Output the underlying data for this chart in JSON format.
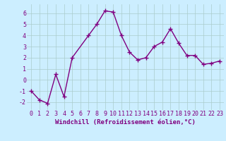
{
  "x": [
    0,
    1,
    2,
    3,
    4,
    5,
    7,
    8,
    9,
    10,
    11,
    12,
    13,
    14,
    15,
    16,
    17,
    18,
    19,
    20,
    21,
    22,
    23
  ],
  "y": [
    -1.0,
    -1.8,
    -2.1,
    0.5,
    -1.5,
    2.0,
    4.0,
    5.0,
    6.2,
    6.1,
    4.0,
    2.5,
    1.8,
    2.0,
    3.0,
    3.4,
    4.6,
    3.3,
    2.2,
    2.2,
    1.4,
    1.5,
    1.7
  ],
  "line_color": "#800080",
  "marker": "+",
  "marker_size": 4,
  "linewidth": 1.0,
  "background_color": "#cceeff",
  "grid_color": "#aacccc",
  "xlabel": "Windchill (Refroidissement éolien,°C)",
  "xlim": [
    -0.5,
    23.5
  ],
  "ylim": [
    -2.7,
    6.8
  ],
  "xticks": [
    0,
    1,
    2,
    3,
    4,
    5,
    6,
    7,
    8,
    9,
    10,
    11,
    12,
    13,
    14,
    15,
    16,
    17,
    18,
    19,
    20,
    21,
    22,
    23
  ],
  "yticks": [
    -2,
    -1,
    0,
    1,
    2,
    3,
    4,
    5,
    6
  ],
  "xlabel_fontsize": 6.5,
  "tick_fontsize": 6,
  "label_color": "#800080"
}
